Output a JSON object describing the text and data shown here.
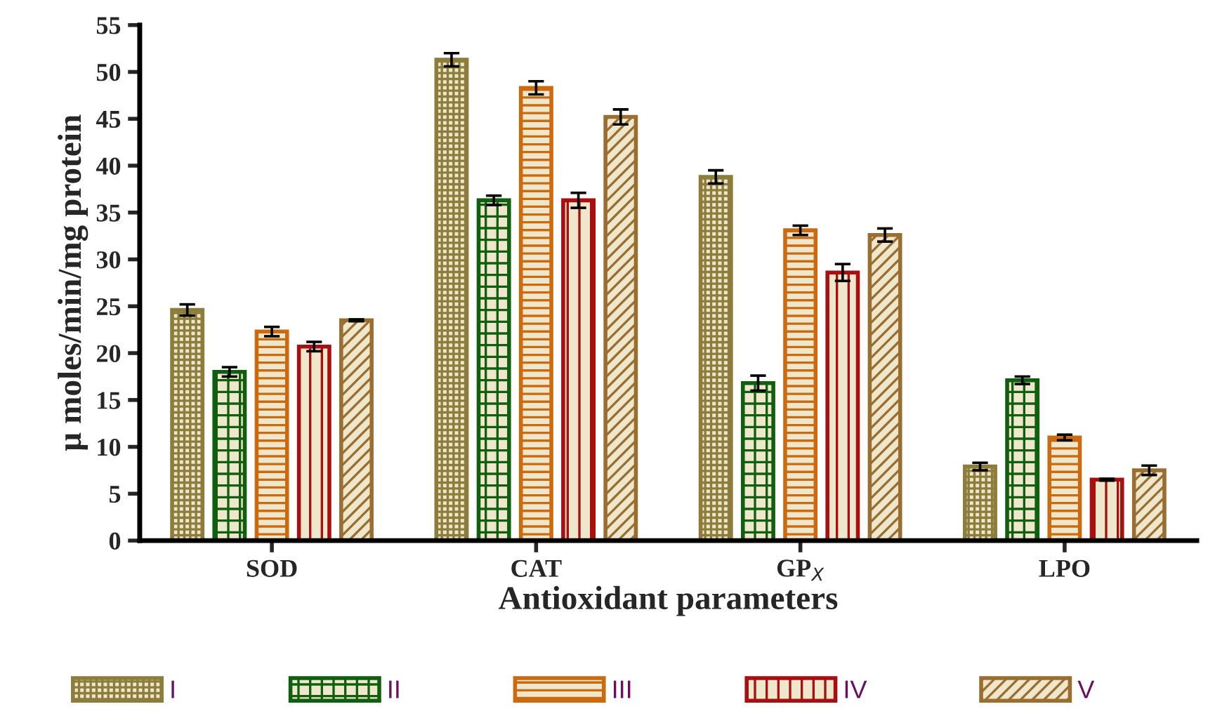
{
  "chart_data": {
    "type": "bar",
    "xlabel": "Antioxidant parameters",
    "ylabel": "µ moles/min/mg protein",
    "categories": [
      "SOD",
      "CAT",
      "GP$_{X}$",
      "LPO"
    ],
    "ylim": [
      0,
      55
    ],
    "yticks": [
      0,
      5,
      10,
      15,
      20,
      25,
      30,
      35,
      40,
      45,
      50,
      55
    ],
    "grid": false,
    "legend": "bottom",
    "series": [
      {
        "name": "I",
        "color": "#8c7d3c",
        "values": [
          24.6,
          51.3,
          38.8,
          7.9
        ],
        "errors": [
          0.6,
          0.7,
          0.7,
          0.4
        ]
      },
      {
        "name": "II",
        "color": "#0f5f0f",
        "values": [
          18.0,
          36.3,
          16.8,
          17.1
        ],
        "errors": [
          0.5,
          0.5,
          0.8,
          0.4
        ]
      },
      {
        "name": "III",
        "color": "#cc6a10",
        "values": [
          22.3,
          48.3,
          33.1,
          11.0
        ],
        "errors": [
          0.5,
          0.7,
          0.5,
          0.3
        ]
      },
      {
        "name": "IV",
        "color": "#a80f10",
        "values": [
          20.7,
          36.3,
          28.6,
          6.5
        ],
        "errors": [
          0.5,
          0.8,
          0.9,
          0.1
        ]
      },
      {
        "name": "V",
        "color": "#9a6e30",
        "values": [
          23.5,
          45.2,
          32.6,
          7.5
        ],
        "errors": [
          0.1,
          0.8,
          0.7,
          0.5
        ]
      }
    ]
  }
}
